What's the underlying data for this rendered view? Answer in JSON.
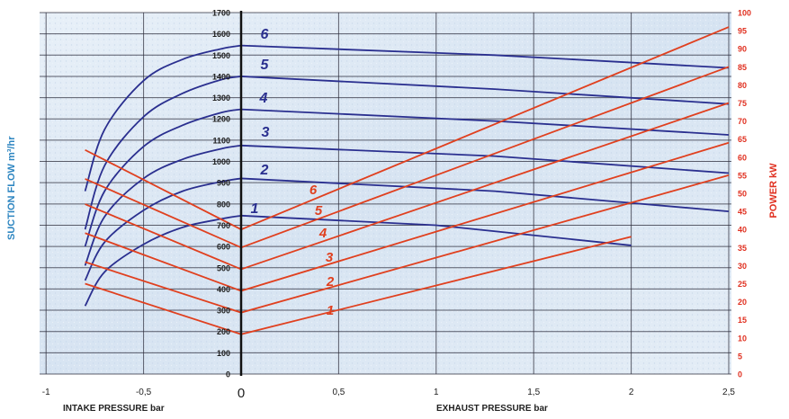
{
  "chart_data": {
    "type": "line",
    "x_ticks": [
      "-1",
      "-0,5",
      "0",
      "0,5",
      "1",
      "1,5",
      "2",
      "2,5"
    ],
    "x_tick_values": [
      -1,
      -0.5,
      0,
      0.5,
      1,
      1.5,
      2,
      2.5
    ],
    "xlim": [
      -1,
      2.5
    ],
    "xlabel_left": "INTAKE PRESSURE bar",
    "xlabel_right": "EXHAUST PRESSURE bar",
    "ylabel": "SUCTION FLOW m³/hr",
    "ylim": [
      0,
      1700
    ],
    "y_ticks": [
      "0",
      "100",
      "200",
      "300",
      "400",
      "500",
      "600",
      "700",
      "800",
      "900",
      "1000",
      "1100",
      "1200",
      "1300",
      "1400",
      "1500",
      "1600",
      "1700"
    ],
    "y2label": "POWER kW",
    "y2lim": [
      0,
      100
    ],
    "y2_ticks": [
      "0",
      "5",
      "10",
      "15",
      "20",
      "25",
      "30",
      "35",
      "40",
      "45",
      "50",
      "55",
      "60",
      "65",
      "70",
      "75",
      "80",
      "85",
      "90",
      "95",
      "100"
    ],
    "grid": true,
    "flow_series": [
      {
        "label": "1",
        "intake": [
          [
            -0.8,
            320
          ],
          [
            -0.7,
            480
          ],
          [
            -0.5,
            610
          ],
          [
            -0.3,
            690
          ],
          [
            -0.1,
            730
          ],
          [
            0,
            745
          ]
        ],
        "exhaust": [
          [
            0,
            745
          ],
          [
            1,
            700
          ],
          [
            2,
            605
          ]
        ]
      },
      {
        "label": "2",
        "intake": [
          [
            -0.8,
            440
          ],
          [
            -0.7,
            620
          ],
          [
            -0.5,
            770
          ],
          [
            -0.3,
            860
          ],
          [
            -0.1,
            905
          ],
          [
            0,
            920
          ]
        ],
        "exhaust": [
          [
            0,
            920
          ],
          [
            1.3,
            860
          ],
          [
            2.5,
            765
          ]
        ]
      },
      {
        "label": "3",
        "intake": [
          [
            -0.8,
            510
          ],
          [
            -0.7,
            740
          ],
          [
            -0.5,
            920
          ],
          [
            -0.3,
            1010
          ],
          [
            -0.1,
            1060
          ],
          [
            0,
            1075
          ]
        ],
        "exhaust": [
          [
            0,
            1075
          ],
          [
            1.3,
            1025
          ],
          [
            2.5,
            945
          ]
        ]
      },
      {
        "label": "4",
        "intake": [
          [
            -0.8,
            600
          ],
          [
            -0.7,
            860
          ],
          [
            -0.5,
            1070
          ],
          [
            -0.3,
            1170
          ],
          [
            -0.1,
            1230
          ],
          [
            0,
            1245
          ]
        ],
        "exhaust": [
          [
            0,
            1245
          ],
          [
            1.3,
            1190
          ],
          [
            2.5,
            1125
          ]
        ]
      },
      {
        "label": "5",
        "intake": [
          [
            -0.8,
            680
          ],
          [
            -0.7,
            980
          ],
          [
            -0.5,
            1210
          ],
          [
            -0.3,
            1320
          ],
          [
            -0.1,
            1385
          ],
          [
            0,
            1400
          ]
        ],
        "exhaust": [
          [
            0,
            1400
          ],
          [
            1.3,
            1340
          ],
          [
            2.5,
            1270
          ]
        ]
      },
      {
        "label": "6",
        "intake": [
          [
            -0.8,
            860
          ],
          [
            -0.7,
            1150
          ],
          [
            -0.5,
            1380
          ],
          [
            -0.3,
            1480
          ],
          [
            -0.1,
            1530
          ],
          [
            0,
            1545
          ]
        ],
        "exhaust": [
          [
            0,
            1545
          ],
          [
            1.3,
            1500
          ],
          [
            2.5,
            1440
          ]
        ]
      }
    ],
    "power_series": [
      {
        "label": "1",
        "points": [
          [
            -0.8,
            25
          ],
          [
            0,
            11
          ],
          [
            2,
            38
          ]
        ]
      },
      {
        "label": "2",
        "points": [
          [
            -0.8,
            31
          ],
          [
            0,
            17
          ],
          [
            2.5,
            55
          ]
        ]
      },
      {
        "label": "3",
        "points": [
          [
            -0.8,
            39
          ],
          [
            0,
            23
          ],
          [
            2.5,
            64
          ]
        ]
      },
      {
        "label": "4",
        "points": [
          [
            -0.8,
            47
          ],
          [
            0,
            29
          ],
          [
            2.5,
            75
          ]
        ]
      },
      {
        "label": "5",
        "points": [
          [
            -0.8,
            54
          ],
          [
            0,
            35
          ],
          [
            2.5,
            85
          ]
        ]
      },
      {
        "label": "6",
        "points": [
          [
            -0.8,
            62
          ],
          [
            0,
            40
          ],
          [
            2.5,
            96
          ]
        ]
      }
    ],
    "flow_labels": [
      "1",
      "2",
      "3",
      "4",
      "5",
      "6"
    ],
    "power_labels": [
      "1",
      "2",
      "3",
      "4",
      "5",
      "6"
    ]
  },
  "colors": {
    "flow_line": "#2a2f8f",
    "power_line": "#e0401f",
    "grid": "#2b2b3a",
    "left_axis_text": "#2e86c1",
    "right_axis_text": "#e03020",
    "background": "#dfe9f5"
  }
}
